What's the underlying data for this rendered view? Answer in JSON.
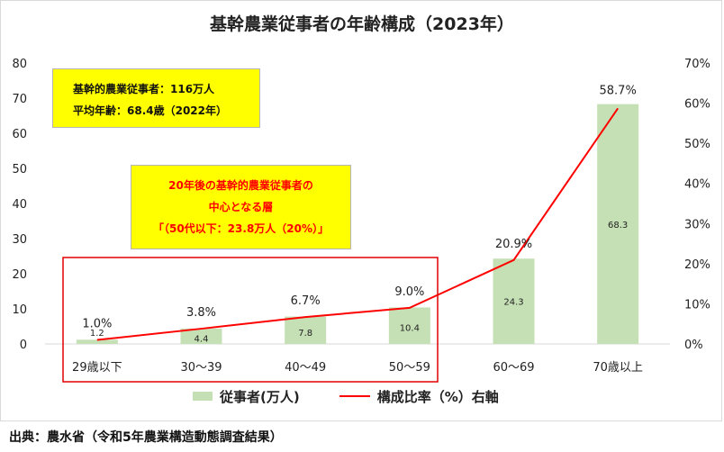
{
  "chart_data": {
    "type": "bar",
    "title": "基幹農業従事者の年齢構成（2023年）",
    "categories": [
      "29歳以下",
      "30～39",
      "40～49",
      "50～59",
      "60～69",
      "70歳以上"
    ],
    "series": [
      {
        "name": "従事者(万人)",
        "type": "bar",
        "axis": "left",
        "values": [
          1.2,
          4.4,
          7.8,
          10.4,
          24.3,
          68.3
        ],
        "labels": [
          "1.2",
          "4.4",
          "7.8",
          "10.4",
          "24.3",
          "68.3"
        ],
        "color": "#c5e0b4"
      },
      {
        "name": "構成比率（%）右軸",
        "type": "line",
        "axis": "right",
        "values": [
          1.0,
          3.8,
          6.7,
          9.0,
          20.9,
          58.7
        ],
        "labels": [
          "1.0%",
          "3.8%",
          "6.7%",
          "9.0%",
          "20.9%",
          "58.7%"
        ],
        "color": "#ff0000"
      }
    ],
    "y_left": {
      "min": 0,
      "max": 80,
      "ticks": [
        "0",
        "10",
        "20",
        "30",
        "40",
        "50",
        "60",
        "70",
        "80"
      ]
    },
    "y_right": {
      "min": 0,
      "max": 70,
      "ticks": [
        "0%",
        "10%",
        "20%",
        "30%",
        "40%",
        "50%",
        "60%",
        "70%"
      ]
    },
    "grid": false,
    "legend": "bottom"
  },
  "annotations": {
    "info_line1": "基幹的農業従事者：116万人",
    "info_line2": "平均年齢：68.4歳（2022年）",
    "core_line1": "20年後の基幹的農業従事者の",
    "core_line2": "中心となる層",
    "core_line3": "「（50代以下：23.8万人（20%）」"
  },
  "source": "出典：農水省（令和5年農業構造動態調査結果）",
  "colors": {
    "bar": "#c5e0b4",
    "line": "#ff0000",
    "highlight_box": "#ffff00",
    "bracket": "#e00000"
  }
}
